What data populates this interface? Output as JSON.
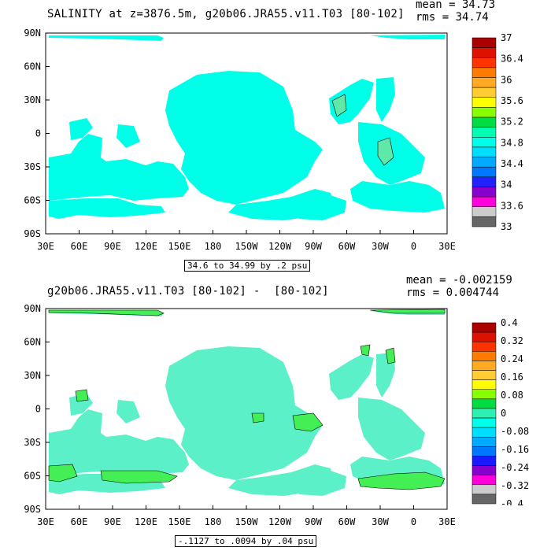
{
  "panels": [
    {
      "title": "SALINITY at z=3876.5m, g20b06.JRA55.v11.T03 [80-102]",
      "mean_label": "mean = 34.73",
      "rms_label": "rms = 34.74",
      "lat_labels": [
        "90N",
        "60N",
        "30N",
        "0",
        "30S",
        "60S",
        "90S"
      ],
      "lon_labels": [
        "30E",
        "60E",
        "90E",
        "120E",
        "150E",
        "180",
        "150W",
        "120W",
        "90W",
        "60W",
        "30W",
        "0",
        "30E"
      ],
      "range_label": "34.6 to 34.99 by .2 psu",
      "field_color": "#00ffe8",
      "anomaly_color": "#5fe8a8",
      "colorbar": {
        "colors": [
          "#aa0000",
          "#dd1100",
          "#ff3300",
          "#ff7a00",
          "#ffaa22",
          "#ffcc33",
          "#ffff00",
          "#88ff00",
          "#00dd44",
          "#00ffb0",
          "#00ffe8",
          "#00ddff",
          "#00aaff",
          "#0077ff",
          "#2222ff",
          "#8800cc",
          "#ff00dd",
          "#cccccc",
          "#666666"
        ],
        "labels": [
          "37",
          "36.4",
          "36",
          "35.6",
          "35.2",
          "34.8",
          "34.4",
          "34",
          "33.6",
          "33"
        ]
      }
    },
    {
      "title": "g20b06.JRA55.v11.T03 [80-102] -  [80-102]",
      "mean_label": "mean = -0.002159",
      "rms_label": "rms = 0.004744",
      "lat_labels": [
        "90N",
        "60N",
        "30N",
        "0",
        "30S",
        "60S",
        "90S"
      ],
      "lon_labels": [
        "30E",
        "60E",
        "90E",
        "120E",
        "150E",
        "180",
        "150W",
        "120W",
        "90W",
        "60W",
        "30W",
        "0",
        "30E"
      ],
      "range_label": "-.1127 to .0094 by .04 psu",
      "field_color": "#5cf0c8",
      "anomaly_color": "#44ee55",
      "colorbar": {
        "colors": [
          "#aa0000",
          "#dd1100",
          "#ff3300",
          "#ff7a00",
          "#ffaa22",
          "#ffcc33",
          "#ffff00",
          "#88ff00",
          "#00dd44",
          "#2ef0b0",
          "#00ffe8",
          "#00ddff",
          "#00aaff",
          "#0077ff",
          "#1a1aff",
          "#8800cc",
          "#ff00dd",
          "#cccccc",
          "#666666"
        ],
        "labels": [
          "0.4",
          "0.32",
          "0.24",
          "0.16",
          "0.08",
          "0",
          "-0.08",
          "-0.16",
          "-0.24",
          "-0.32",
          "-0.4"
        ]
      }
    }
  ]
}
